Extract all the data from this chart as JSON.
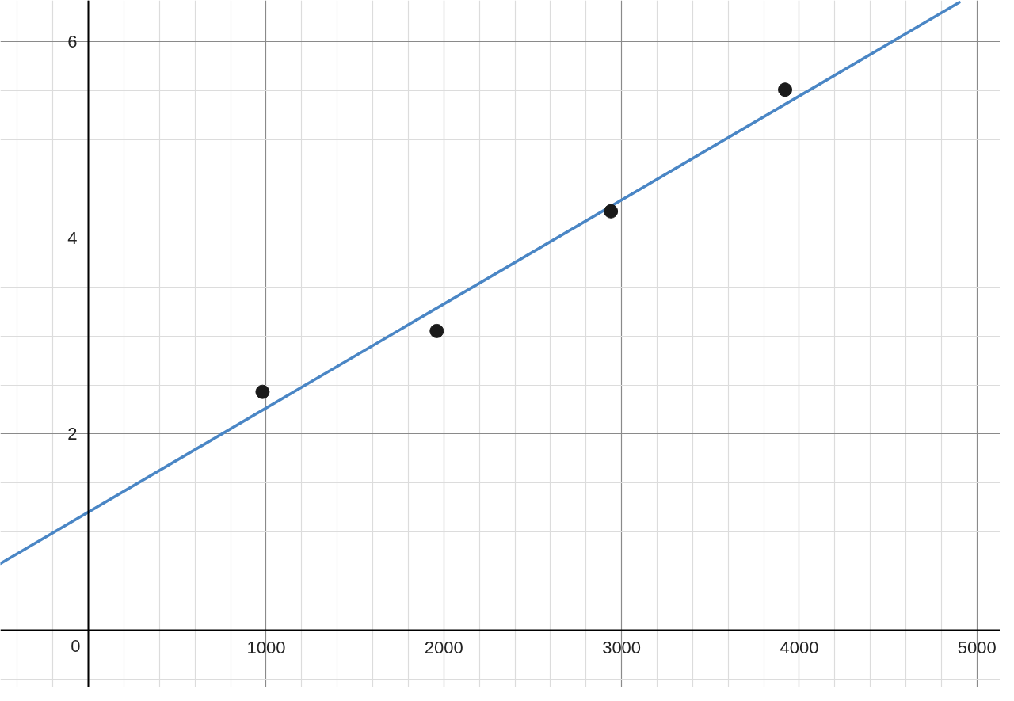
{
  "chart_data": {
    "type": "scatter",
    "series": [
      {
        "color": "#1a1a1a",
        "marker": "circle",
        "x": [
          980,
          1960,
          2940,
          3920
        ],
        "values": [
          2.43,
          3.05,
          4.27,
          5.51
        ]
      },
      {
        "type": "line",
        "color": "#4a86c5",
        "line_style": "solid",
        "x": [
          -495,
          4900
        ],
        "values": [
          0.68,
          6.4
        ]
      }
    ],
    "xlim": [
      -495,
      5130
    ],
    "ylim": [
      -0.58,
      6.42
    ],
    "xticks": [
      {
        "value": -400,
        "label": null
      },
      {
        "value": -200,
        "label": null
      },
      0,
      {
        "value": 200,
        "label": null
      },
      {
        "value": 400,
        "label": null
      },
      {
        "value": 600,
        "label": null
      },
      {
        "value": 800,
        "label": null
      },
      1000,
      {
        "value": 1200,
        "label": null
      },
      {
        "value": 1400,
        "label": null
      },
      {
        "value": 1600,
        "label": null
      },
      {
        "value": 1800,
        "label": null
      },
      2000,
      {
        "value": 2200,
        "label": null
      },
      {
        "value": 2400,
        "label": null
      },
      {
        "value": 2600,
        "label": null
      },
      {
        "value": 2800,
        "label": null
      },
      3000,
      {
        "value": 3200,
        "label": null
      },
      {
        "value": 3400,
        "label": null
      },
      {
        "value": 3600,
        "label": null
      },
      {
        "value": 3800,
        "label": null
      },
      4000,
      {
        "value": 4200,
        "label": null
      },
      {
        "value": 4400,
        "label": null
      },
      {
        "value": 4600,
        "label": null
      },
      {
        "value": 4800,
        "label": null
      },
      5000
    ],
    "yticks": [
      {
        "value": -0.5,
        "label": null
      },
      {
        "value": 0.5,
        "label": null
      },
      {
        "value": 1,
        "label": null
      },
      {
        "value": 1.5,
        "label": null
      },
      2,
      {
        "value": 2.5,
        "label": null
      },
      {
        "value": 3,
        "label": null
      },
      {
        "value": 3.5,
        "label": null
      },
      4,
      {
        "value": 4.5,
        "label": null
      },
      {
        "value": 5,
        "label": null
      },
      {
        "value": 5.5,
        "label": null
      },
      6
    ],
    "grid": true
  }
}
